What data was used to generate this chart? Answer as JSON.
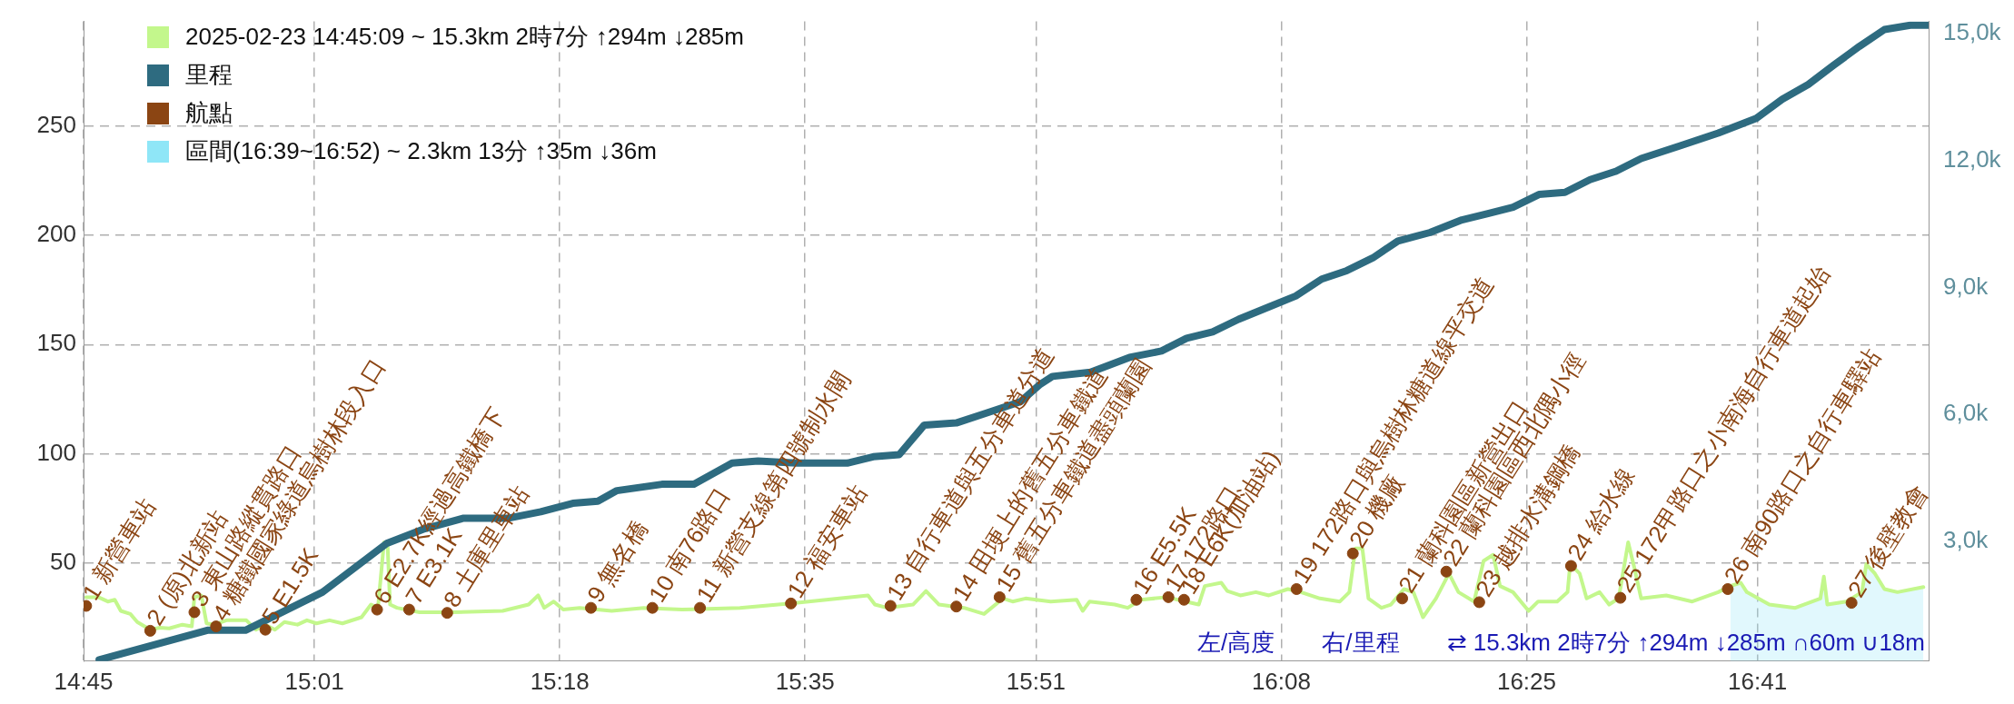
{
  "chart_data": {
    "type": "line",
    "xlim": [
      14.75,
      16.881
    ],
    "xticks": [
      {
        "value": 14.75,
        "label": "14:45"
      },
      {
        "value": 15.01667,
        "label": "15:01"
      },
      {
        "value": 15.3,
        "label": "15:18"
      },
      {
        "value": 15.58333,
        "label": "15:35"
      },
      {
        "value": 15.85,
        "label": "15:51"
      },
      {
        "value": 16.13333,
        "label": "16:08"
      },
      {
        "value": 16.41667,
        "label": "16:25"
      },
      {
        "value": 16.68333,
        "label": "16:41"
      }
    ],
    "ylim": [
      5,
      298
    ],
    "yticks": [
      50,
      100,
      150,
      200,
      250
    ],
    "y2lim": [
      170,
      15290
    ],
    "y2ticks": [
      {
        "value": 3000,
        "label": "3,0k"
      },
      {
        "value": 6000,
        "label": "6,0k"
      },
      {
        "value": 9000,
        "label": "9,0k"
      },
      {
        "value": 12000,
        "label": "12,0k"
      },
      {
        "value": 15000,
        "label": "15,0k"
      }
    ],
    "grid": true,
    "legend": "top left",
    "series": [
      {
        "name": "2025-02-23 14:45:09 ~ 15.3km 2時7分 ↑294m ↓285m",
        "color": "#c3f78c",
        "x": [
          14.753,
          14.767,
          14.778,
          14.786,
          14.793,
          14.804,
          14.812,
          14.827,
          14.838,
          14.849,
          14.864,
          14.875,
          14.878,
          14.886,
          14.892,
          14.901,
          14.915,
          14.938,
          14.949,
          14.96,
          14.971,
          14.982,
          14.997,
          15.008,
          15.019,
          15.034,
          15.049,
          15.071,
          15.082,
          15.09,
          15.097,
          15.101,
          15.104,
          15.112,
          15.138,
          15.175,
          15.234,
          15.264,
          15.275,
          15.282,
          15.293,
          15.304,
          15.323,
          15.36,
          15.397,
          15.441,
          15.508,
          15.567,
          15.656,
          15.664,
          15.678,
          15.708,
          15.723,
          15.738,
          15.767,
          15.79,
          15.812,
          15.823,
          15.838,
          15.867,
          15.897,
          15.904,
          15.912,
          15.941,
          15.956,
          15.971,
          16.001,
          16.023,
          16.038,
          16.045,
          16.064,
          16.071,
          16.086,
          16.104,
          16.119,
          16.141,
          16.156,
          16.178,
          16.201,
          16.212,
          16.219,
          16.227,
          16.234,
          16.249,
          16.26,
          16.275,
          16.286,
          16.297,
          16.312,
          16.327,
          16.338,
          16.356,
          16.367,
          16.378,
          16.386,
          16.401,
          16.419,
          16.43,
          16.452,
          16.464,
          16.467,
          16.478,
          16.486,
          16.501,
          16.512,
          16.523,
          16.534,
          16.541,
          16.549,
          16.578,
          16.608,
          16.638,
          16.652,
          16.664,
          16.671,
          16.697,
          16.727,
          16.756,
          16.76,
          16.764,
          16.786,
          16.804,
          16.809,
          16.819,
          16.83,
          16.845,
          16.875
        ],
        "values": [
          34.3,
          34.3,
          32.3,
          33.1,
          28.0,
          26.6,
          22.9,
          19.4,
          20.3,
          20.0,
          21.7,
          20.9,
          34.3,
          35.1,
          22.3,
          21.7,
          23.7,
          23.7,
          19.4,
          21.7,
          19.4,
          22.9,
          21.7,
          23.7,
          22.3,
          23.7,
          22.3,
          25.1,
          30.9,
          29.4,
          59.4,
          59.4,
          30.9,
          29.4,
          27.4,
          27.4,
          28.0,
          30.9,
          35.1,
          29.4,
          32.3,
          28.6,
          29.4,
          28.0,
          29.4,
          28.6,
          29.4,
          31.4,
          35.1,
          30.9,
          29.4,
          30.9,
          37.1,
          30.9,
          29.4,
          26.6,
          33.7,
          32.3,
          33.7,
          32.3,
          33.1,
          28.0,
          32.3,
          30.9,
          29.4,
          33.1,
          34.3,
          32.3,
          30.9,
          39.4,
          40.9,
          37.1,
          35.1,
          36.6,
          35.1,
          38.0,
          36.6,
          33.7,
          32.3,
          36.6,
          56.6,
          56.6,
          33.7,
          29.4,
          30.9,
          38.0,
          36.6,
          25.1,
          33.7,
          45.1,
          36.6,
          32.3,
          50.9,
          53.7,
          39.4,
          36.6,
          28.0,
          32.3,
          32.3,
          36.6,
          49.4,
          45.1,
          33.7,
          36.6,
          30.9,
          33.7,
          59.4,
          48.0,
          33.7,
          35.1,
          32.3,
          36.6,
          39.4,
          40.9,
          36.6,
          30.9,
          29.4,
          33.7,
          43.7,
          30.9,
          32.3,
          36.6,
          49.4,
          45.1,
          38.0,
          36.6,
          38.9
        ]
      },
      {
        "name": "里程",
        "color": "#2e6b80",
        "axis": "y2",
        "x": [
          14.768,
          14.893,
          14.937,
          15.026,
          15.1,
          15.144,
          15.189,
          15.241,
          15.278,
          15.315,
          15.344,
          15.366,
          15.418,
          15.455,
          15.499,
          15.529,
          15.573,
          15.632,
          15.662,
          15.692,
          15.721,
          15.758,
          15.795,
          15.832,
          15.854,
          15.869,
          15.913,
          15.958,
          15.995,
          16.024,
          16.054,
          16.084,
          16.12,
          16.15,
          16.18,
          16.209,
          16.239,
          16.268,
          16.305,
          16.342,
          16.372,
          16.401,
          16.431,
          16.461,
          16.49,
          16.52,
          16.549,
          16.594,
          16.638,
          16.682,
          16.712,
          16.742,
          16.771,
          16.801,
          16.83,
          16.86,
          16.881
        ],
        "values": [
          200,
          900,
          900,
          1800,
          2950,
          3300,
          3550,
          3550,
          3700,
          3900,
          3950,
          4200,
          4350,
          4350,
          4850,
          4900,
          4850,
          4850,
          5000,
          5050,
          5750,
          5800,
          6050,
          6300,
          6700,
          6900,
          7000,
          7350,
          7500,
          7800,
          7950,
          8250,
          8550,
          8800,
          9200,
          9400,
          9700,
          10100,
          10300,
          10600,
          10750,
          10900,
          11200,
          11250,
          11550,
          11750,
          12050,
          12350,
          12650,
          13000,
          13450,
          13800,
          14250,
          14700,
          15100,
          15200,
          15200
        ]
      },
      {
        "name": "航點",
        "color": "#8b4513",
        "type": "scatter",
        "marker": "circle",
        "x": [
          14.753,
          14.827,
          14.878,
          14.903,
          14.96,
          15.089,
          15.126,
          15.17,
          15.336,
          15.407,
          15.462,
          15.567,
          15.682,
          15.758,
          15.808,
          15.966,
          16.003,
          16.021,
          16.151,
          16.216,
          16.273,
          16.324,
          16.362,
          16.468,
          16.525,
          16.649,
          16.792
        ],
        "values": [
          30.3,
          18.9,
          27.4,
          20.9,
          19.4,
          28.6,
          28.6,
          27.1,
          29.4,
          29.4,
          29.4,
          31.4,
          30.3,
          30.0,
          34.3,
          33.1,
          34.3,
          33.1,
          38.0,
          54.3,
          33.7,
          46.0,
          32.0,
          48.6,
          34.0,
          38.0,
          31.7
        ]
      },
      {
        "name": "區間(16:39~16:52) ~ 2.3km 13分 ↑35m ↓36m",
        "color": "#8fe6f7",
        "type": "area",
        "x": [
          16.652,
          16.664,
          16.671,
          16.697,
          16.727,
          16.756,
          16.76,
          16.764,
          16.786,
          16.804,
          16.809,
          16.819,
          16.83,
          16.845,
          16.875
        ],
        "values": [
          39.4,
          40.9,
          36.6,
          30.9,
          29.4,
          33.7,
          43.7,
          30.9,
          32.3,
          36.6,
          49.4,
          45.1,
          38.0,
          36.6,
          38.9
        ]
      }
    ],
    "annotations": [
      {
        "text": "1 新營車站",
        "x": 14.753,
        "y": 30.3
      },
      {
        "text": "2 (原)北新站",
        "x": 14.827,
        "y": 18.9
      },
      {
        "text": "3 東山路縱貫路口",
        "x": 14.878,
        "y": 27.4
      },
      {
        "text": "4 糖鐵國家綠道烏樹林段入口",
        "x": 14.903,
        "y": 20.9
      },
      {
        "text": "5 E1.5K",
        "x": 14.96,
        "y": 19.4
      },
      {
        "text": "6 E2.7K經過高鐵橋下",
        "x": 15.089,
        "y": 28.6
      },
      {
        "text": "7 E3.1K",
        "x": 15.126,
        "y": 28.6
      },
      {
        "text": "8 土庫里車站",
        "x": 15.17,
        "y": 27.1
      },
      {
        "text": "9 無名橋",
        "x": 15.336,
        "y": 29.4
      },
      {
        "text": "10 南76路口",
        "x": 15.407,
        "y": 29.4
      },
      {
        "text": "11 新營支線第四號制水閘",
        "x": 15.462,
        "y": 29.4
      },
      {
        "text": "12 福安車站",
        "x": 15.567,
        "y": 31.4
      },
      {
        "text": "13 自行車道與五分車道分道",
        "x": 15.682,
        "y": 30.3
      },
      {
        "text": "14 田埂上的舊五分車鐵道",
        "x": 15.758,
        "y": 30.0
      },
      {
        "text": "15 舊五分車鐵道盡頭蘭園",
        "x": 15.808,
        "y": 34.3
      },
      {
        "text": "16 E5.5K",
        "x": 15.966,
        "y": 33.1
      },
      {
        "text": "17 172路口",
        "x": 16.003,
        "y": 34.3
      },
      {
        "text": "18 E6K(加油站)",
        "x": 16.021,
        "y": 33.1
      },
      {
        "text": "19 172路口與烏樹林糖道線平交道",
        "x": 16.151,
        "y": 38.0
      },
      {
        "text": "20 機廠",
        "x": 16.216,
        "y": 54.3
      },
      {
        "text": "21 蘭科園區新營出口",
        "x": 16.273,
        "y": 33.7
      },
      {
        "text": "22 蘭科園區西北隅小徑",
        "x": 16.324,
        "y": 46.0
      },
      {
        "text": "23 越排水溝鋼橋",
        "x": 16.362,
        "y": 32.0
      },
      {
        "text": "24 給水線",
        "x": 16.468,
        "y": 48.6
      },
      {
        "text": "25 172甲路口之小南海自行車道起始",
        "x": 16.525,
        "y": 34.0
      },
      {
        "text": "26 南90路口之自行車驛站",
        "x": 16.649,
        "y": 38.0
      },
      {
        "text": "27 後壁教會",
        "x": 16.792,
        "y": 31.7
      },
      "左/高度",
      "右/里程",
      "⇄ 15.3km 2時7分 ↑294m ↓285m ∩60m ∪18m"
    ]
  }
}
